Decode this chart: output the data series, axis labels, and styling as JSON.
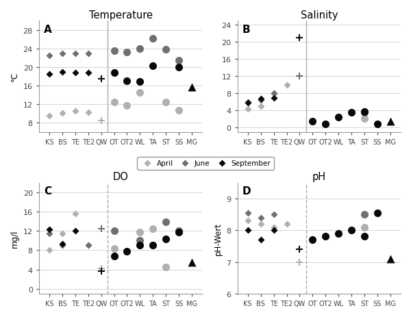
{
  "categories": [
    "KS",
    "BS",
    "TE",
    "TE2",
    "QW",
    "OT",
    "OT2",
    "WL",
    "TA",
    "ST",
    "SS",
    "MG"
  ],
  "vline_after_idx": 4,
  "panels": {
    "temp": {
      "title": "Temperature",
      "ylabel": "°C",
      "ylim": [
        6,
        30
      ],
      "yticks": [
        8,
        12,
        16,
        20,
        24,
        28
      ],
      "label": "A",
      "vline_style": "solid",
      "april": [
        9.5,
        10.0,
        10.5,
        10.2,
        8.5,
        12.5,
        11.7,
        14.5,
        null,
        12.5,
        10.7,
        null
      ],
      "june": [
        22.5,
        23.0,
        23.0,
        23.0,
        null,
        23.5,
        23.2,
        24.0,
        26.2,
        23.8,
        21.5,
        null
      ],
      "september": [
        18.5,
        19.0,
        18.8,
        18.8,
        17.5,
        18.8,
        17.0,
        16.8,
        20.3,
        null,
        19.9,
        15.7
      ]
    },
    "salinity": {
      "title": "Salinity",
      "ylabel": "",
      "ylim": [
        -1,
        25
      ],
      "yticks": [
        0,
        4,
        8,
        12,
        16,
        20,
        24
      ],
      "label": "B",
      "vline_style": "solid",
      "april": [
        4.4,
        5.0,
        8.0,
        10.0,
        12.0,
        null,
        null,
        null,
        null,
        2.2,
        null,
        null
      ],
      "june": [
        6.0,
        6.5,
        8.0,
        null,
        12.0,
        null,
        null,
        null,
        null,
        3.5,
        null,
        null
      ],
      "september": [
        5.8,
        6.8,
        7.0,
        null,
        21.0,
        1.5,
        0.8,
        2.5,
        3.5,
        3.8,
        0.8,
        1.5
      ]
    },
    "do": {
      "title": "DO",
      "ylabel": "mg/l",
      "ylim": [
        -1,
        22
      ],
      "yticks": [
        0,
        4,
        8,
        12,
        16,
        20
      ],
      "label": "C",
      "vline_style": "dashed",
      "april": [
        8.0,
        11.5,
        15.5,
        9.0,
        4.3,
        8.3,
        null,
        11.8,
        12.5,
        4.5,
        null,
        null
      ],
      "june": [
        11.5,
        9.0,
        null,
        9.0,
        12.5,
        12.0,
        null,
        10.0,
        null,
        13.8,
        12.0,
        null
      ],
      "september": [
        12.3,
        9.3,
        12.0,
        null,
        3.7,
        6.8,
        7.8,
        9.0,
        9.0,
        10.3,
        11.8,
        5.5
      ]
    },
    "ph": {
      "title": "pH",
      "ylabel": "pH-Wert",
      "ylim": [
        6,
        9.5
      ],
      "yticks": [
        6,
        7,
        8,
        9
      ],
      "label": "D",
      "vline_style": "dashed",
      "april": [
        8.3,
        8.2,
        8.1,
        8.2,
        7.0,
        null,
        null,
        null,
        null,
        8.1,
        null,
        null
      ],
      "june": [
        8.55,
        8.4,
        8.5,
        null,
        null,
        null,
        null,
        null,
        null,
        8.5,
        null,
        null
      ],
      "september": [
        8.0,
        7.7,
        8.0,
        null,
        7.4,
        7.7,
        7.8,
        7.9,
        8.0,
        7.8,
        8.55,
        7.1
      ]
    }
  },
  "colors": {
    "april": "#b0b0b0",
    "june": "#707070",
    "september": "#080808"
  },
  "marker_sizes": {
    "diamond": 5,
    "circle": 8,
    "triangle": 8,
    "cross": 7
  }
}
